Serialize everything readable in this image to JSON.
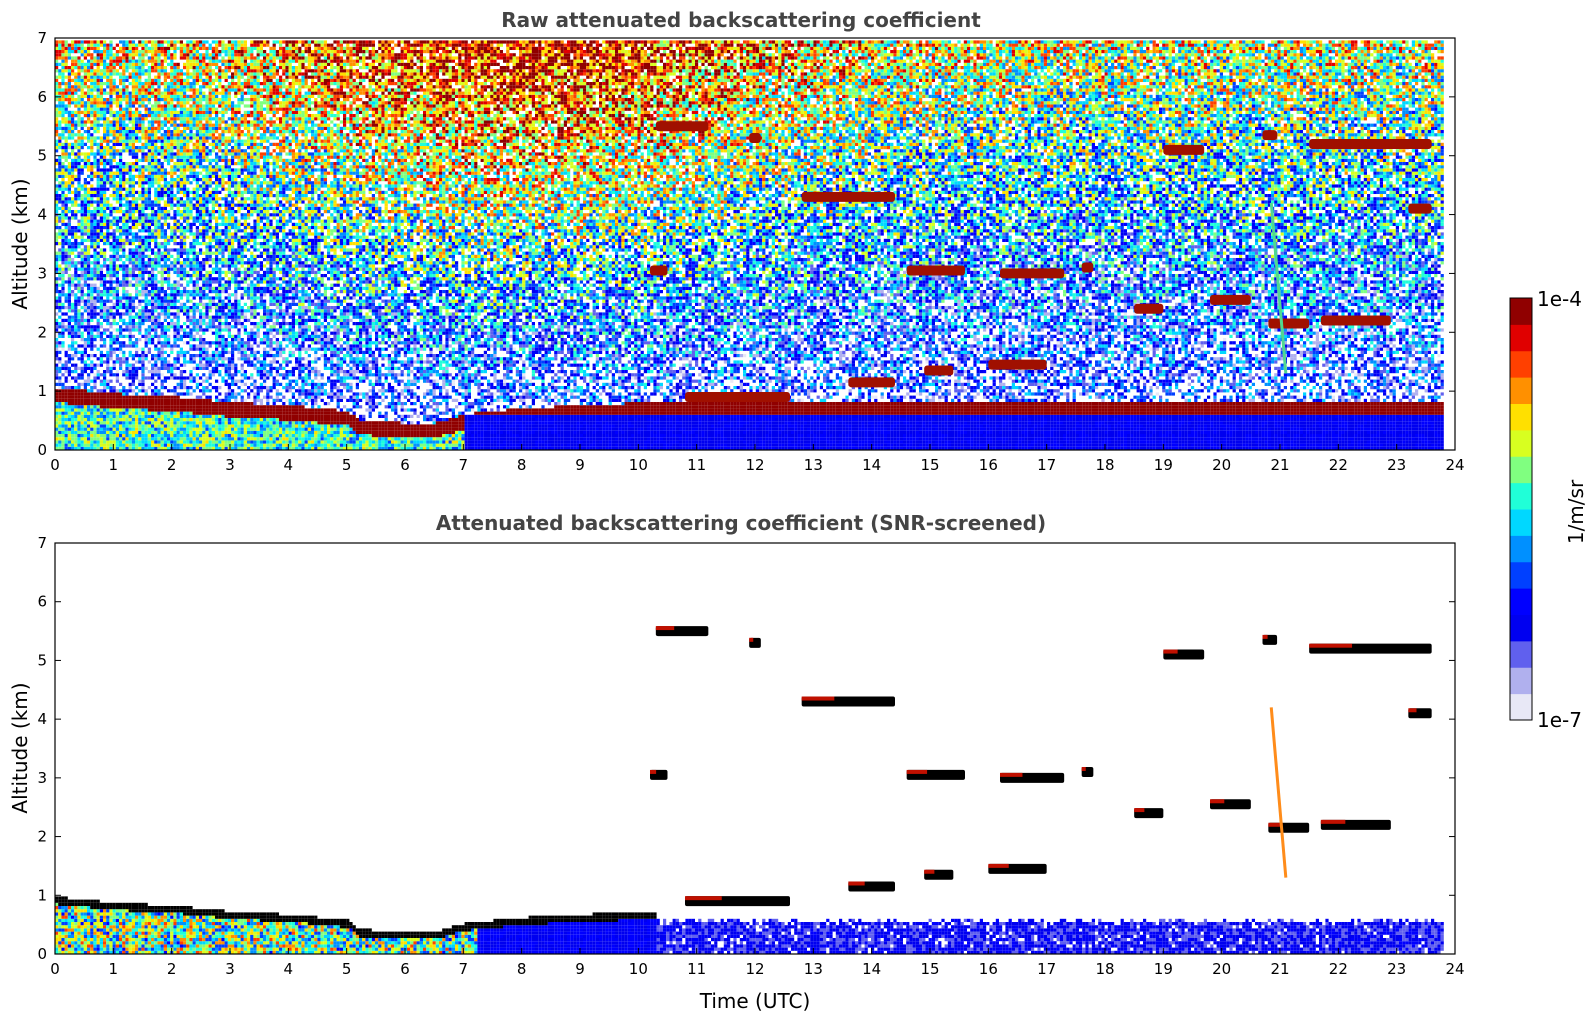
{
  "chart_data": [
    {
      "type": "heatmap",
      "title": "Raw attenuated backscattering coefficient",
      "xlabel": "",
      "ylabel": "Altitude (km)",
      "xlim": [
        0,
        24
      ],
      "ylim": [
        0,
        7
      ],
      "xticks": [
        "0",
        "1",
        "2",
        "3",
        "4",
        "5",
        "6",
        "7",
        "8",
        "9",
        "10",
        "11",
        "12",
        "13",
        "14",
        "15",
        "16",
        "17",
        "18",
        "19",
        "20",
        "21",
        "22",
        "23",
        "24"
      ],
      "yticks": [
        "0",
        "1",
        "2",
        "3",
        "4",
        "5",
        "6",
        "7"
      ],
      "data_end_hour": 23.8,
      "boundary_layer_top_km": [
        [
          0,
          0.9
        ],
        [
          1,
          0.8
        ],
        [
          2,
          0.75
        ],
        [
          3,
          0.65
        ],
        [
          4,
          0.6
        ],
        [
          5,
          0.5
        ],
        [
          5.2,
          0.35
        ],
        [
          6,
          0.3
        ],
        [
          6.5,
          0.3
        ],
        [
          7,
          0.45
        ],
        [
          8,
          0.55
        ],
        [
          9,
          0.6
        ],
        [
          10.2,
          0.65
        ]
      ],
      "cloud_layers": [
        {
          "t": [
            10.3,
            11.2
          ],
          "alt_km": 5.5
        },
        {
          "t": [
            11.9,
            12.1
          ],
          "alt_km": 5.3
        },
        {
          "t": [
            12.8,
            14.4
          ],
          "alt_km": 4.3
        },
        {
          "t": [
            10.2,
            10.5
          ],
          "alt_km": 3.05
        },
        {
          "t": [
            14.6,
            15.6
          ],
          "alt_km": 3.05
        },
        {
          "t": [
            16.2,
            17.3
          ],
          "alt_km": 3.0
        },
        {
          "t": [
            17.6,
            17.8
          ],
          "alt_km": 3.1
        },
        {
          "t": [
            19.8,
            20.5
          ],
          "alt_km": 2.55
        },
        {
          "t": [
            20.8,
            21.5
          ],
          "alt_km": 2.15
        },
        {
          "t": [
            21.7,
            22.9
          ],
          "alt_km": 2.2
        },
        {
          "t": [
            18.5,
            19.0
          ],
          "alt_km": 2.4
        },
        {
          "t": [
            19.0,
            19.7
          ],
          "alt_km": 5.1
        },
        {
          "t": [
            21.5,
            23.6
          ],
          "alt_km": 5.2
        },
        {
          "t": [
            20.7,
            20.95
          ],
          "alt_km": 5.35
        },
        {
          "t": [
            23.2,
            23.6
          ],
          "alt_km": 4.1
        },
        {
          "t": [
            10.8,
            12.6
          ],
          "alt_km": 0.9
        },
        {
          "t": [
            13.6,
            14.4
          ],
          "alt_km": 1.15
        },
        {
          "t": [
            14.9,
            15.4
          ],
          "alt_km": 1.35
        },
        {
          "t": [
            16.0,
            17.0
          ],
          "alt_km": 1.45
        }
      ],
      "fall_streak": {
        "t": [
          20.85,
          21.1
        ],
        "alt_km": [
          4.2,
          1.3
        ]
      }
    },
    {
      "type": "heatmap",
      "title": "Attenuated backscattering coefficient (SNR-screened)",
      "xlabel": "Time (UTC)",
      "ylabel": "Altitude (km)",
      "xlim": [
        0,
        24
      ],
      "ylim": [
        0,
        7
      ],
      "xticks": [
        "0",
        "1",
        "2",
        "3",
        "4",
        "5",
        "6",
        "7",
        "8",
        "9",
        "10",
        "11",
        "12",
        "13",
        "14",
        "15",
        "16",
        "17",
        "18",
        "19",
        "20",
        "21",
        "22",
        "23",
        "24"
      ],
      "yticks": [
        "0",
        "1",
        "2",
        "3",
        "4",
        "5",
        "6",
        "7"
      ]
    }
  ],
  "colorbar": {
    "label": "1/m/sr",
    "max_label": "1e-4",
    "min_label": "1e-7",
    "colors": [
      "#e8e8f6",
      "#b0b0ee",
      "#6060ee",
      "#0000f0",
      "#0000ff",
      "#0040ff",
      "#0090ff",
      "#00d8ff",
      "#20ffd8",
      "#80ff80",
      "#d8ff20",
      "#ffe000",
      "#ff9000",
      "#ff4000",
      "#e00000",
      "#900000"
    ]
  }
}
